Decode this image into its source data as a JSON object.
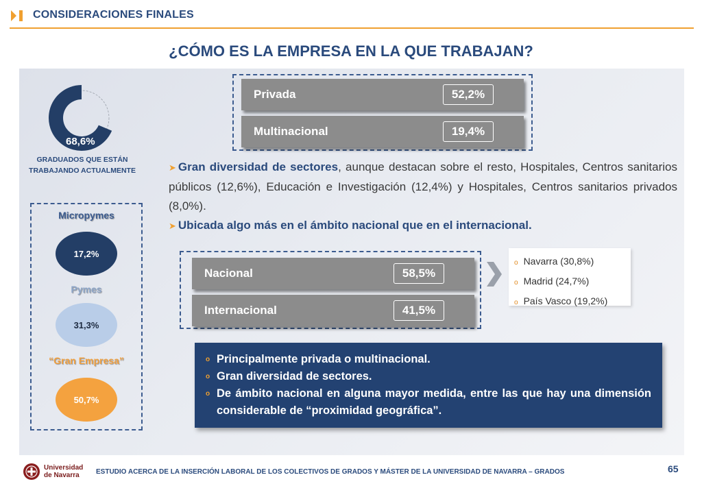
{
  "header": {
    "section_title": "CONSIDERACIONES FINALES"
  },
  "title": "¿CÓMO ES LA EMPRESA EN LA QUE TRABAJAN?",
  "employed": {
    "percent": "68,6%",
    "fraction": 0.686,
    "caption": "GRADUADOS QUE ESTÁN TRABAJANDO ACTUALMENTE"
  },
  "company_size": {
    "micro": {
      "label": "Micropymes",
      "value": "17,2%"
    },
    "pymes": {
      "label": "Pymes",
      "value": "31,3%"
    },
    "gran": {
      "label": "“Gran Empresa”",
      "value": "50,7%"
    }
  },
  "ownership": {
    "privada": {
      "label": "Privada",
      "value": "52,2%"
    },
    "multinacional": {
      "label": "Multinacional",
      "value": "19,4%"
    }
  },
  "bullets": {
    "b1_bold": "Gran diversidad de sectores",
    "b1_rest": ", aunque destacan sobre el resto, Hospitales, Centros sanitarios públicos (12,6%), Educación e Investigación (12,4%) y Hospitales, Centros sanitarios privados (8,0%).",
    "b2": "Ubicada algo más en el ámbito nacional que en el internacional."
  },
  "scope": {
    "nacional": {
      "label": "Nacional",
      "value": "58,5%"
    },
    "internacional": {
      "label": "Internacional",
      "value": "41,5%"
    }
  },
  "regions": [
    "Navarra (30,8%)",
    "Madrid (24,7%)",
    "País Vasco (19,2%)"
  ],
  "summary": [
    "Principalmente privada o multinacional.",
    "Gran diversidad de sectores.",
    "De ámbito nacional en alguna mayor medida, entre las que hay una dimensión considerable de “proximidad geográfica”."
  ],
  "footer": {
    "logo_line1": "Universidad",
    "logo_line2": "de Navarra",
    "text": "ESTUDIO ACERCA DE LA INSERCIÓN LABORAL DE LOS COLECTIVOS DE GRADOS Y MÁSTER DE LA UNIVERSIDAD DE NAVARRA – GRADOS",
    "page": "65"
  },
  "colors": {
    "navy": "#2a4a7c",
    "orange": "#f0a030",
    "bar_gray": "#8c8c8c",
    "summary_blue": "#234272"
  }
}
